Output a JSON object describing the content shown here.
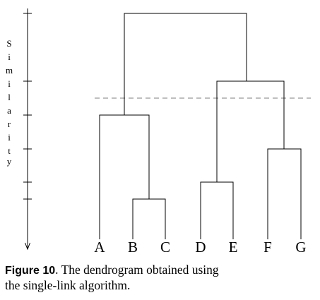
{
  "axis": {
    "label_letters": [
      "S",
      "i",
      "m",
      "i",
      "l",
      "a",
      "r",
      "i",
      "t",
      "y"
    ]
  },
  "leaves": [
    "A",
    "B",
    "C",
    "D",
    "E",
    "F",
    "G"
  ],
  "caption": {
    "label": "Figure 10",
    "line1": ". The dendrogram obtained using",
    "line2": "the single-link algorithm."
  },
  "colors": {
    "lines": "#000000",
    "cut_line": "#999999"
  }
}
